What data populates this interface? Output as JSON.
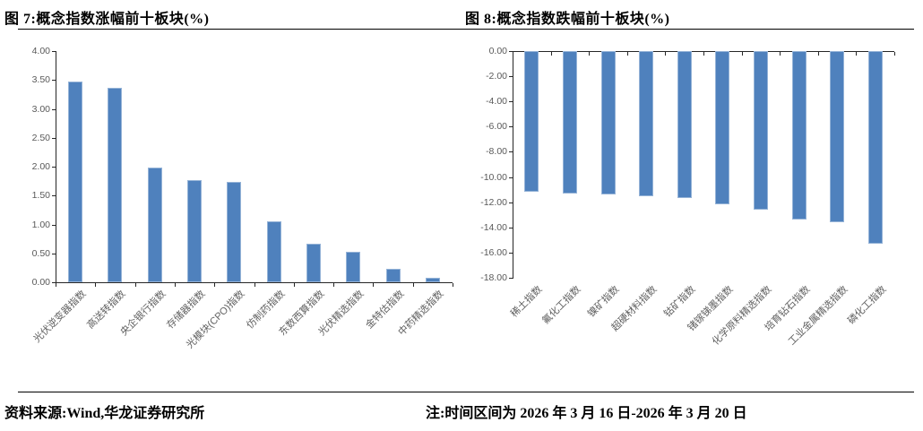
{
  "figures": {
    "fig7_title": "图 7:概念指数涨幅前十板块(%)",
    "fig8_title": "图 8:概念指数跌幅前十板块(%)"
  },
  "footer": {
    "source": "资料来源:Wind,华龙证券研究所",
    "note": "注:时间区间为 2026 年 3 月 16 日-2026 年 3 月 20 日"
  },
  "colors": {
    "bar_fill": "#4F81BD",
    "bar_border": "#95B3D7",
    "axis": "#262626",
    "tick_label": "#595959"
  },
  "chart_data": [
    {
      "type": "bar",
      "title": "图 7:概念指数涨幅前十板块(%)",
      "categories": [
        "光伏逆变器指数",
        "高送转指数",
        "央企银行指数",
        "存储器指数",
        "光模块(CPO)指数",
        "仿制药指数",
        "东数西算指数",
        "光伏精选指数",
        "金特估指数",
        "中药精选指数"
      ],
      "values": [
        3.47,
        3.37,
        1.98,
        1.76,
        1.74,
        1.06,
        0.66,
        0.53,
        0.23,
        0.08
      ],
      "xlabel": "",
      "ylabel": "",
      "ylim": [
        0,
        4
      ],
      "yticks": [
        "0.00",
        "0.50",
        "1.00",
        "1.50",
        "2.00",
        "2.50",
        "3.00",
        "3.50",
        "4.00"
      ],
      "grid": false,
      "legend": "none"
    },
    {
      "type": "bar",
      "title": "图 8:概念指数跌幅前十板块(%)",
      "categories": [
        "稀土指数",
        "氟化工指数",
        "镍矿指数",
        "超硬材料指数",
        "钴矿指数",
        "锗镓锑墨指数",
        "化学原料精选指数",
        "培育钻石指数",
        "工业金属精选指数",
        "磷化工指数"
      ],
      "values": [
        -11.2,
        -11.3,
        -11.4,
        -11.5,
        -11.7,
        -12.2,
        -12.6,
        -13.4,
        -13.6,
        -15.3
      ],
      "xlabel": "",
      "ylabel": "",
      "ylim": [
        -18,
        0
      ],
      "yticks": [
        "0.00",
        "-2.00",
        "-4.00",
        "-6.00",
        "-8.00",
        "-10.00",
        "-12.00",
        "-14.00",
        "-16.00",
        "-18.00"
      ],
      "grid": false,
      "legend": "none"
    }
  ]
}
